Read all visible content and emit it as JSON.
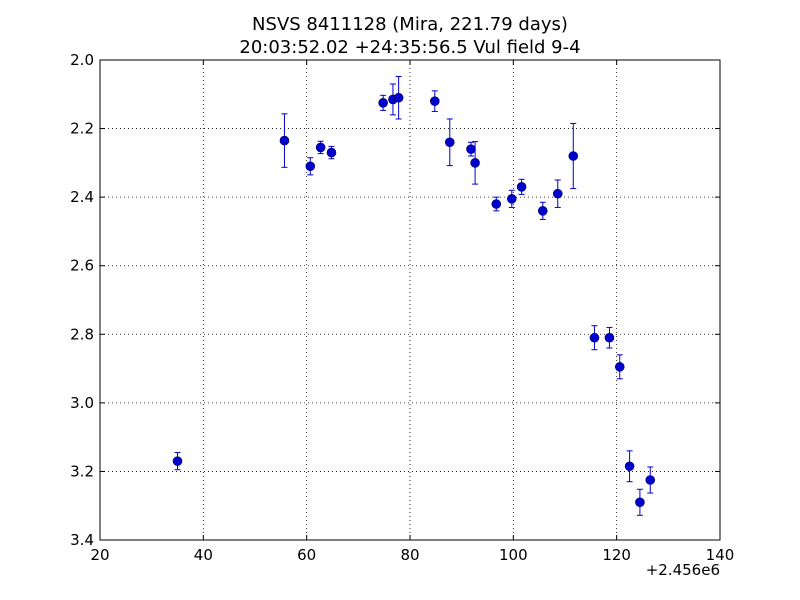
{
  "chart_data": {
    "type": "scatter",
    "title": [
      "NSVS 8411128 (Mira, 221.79 days)",
      "20:03:52.02 +24:35:56.5 Vul field 9-4"
    ],
    "xlabel": "",
    "ylabel": "",
    "x_offset_label": "+2.456e6",
    "xlim": [
      20,
      140
    ],
    "ylim": [
      2.0,
      3.4
    ],
    "y_inverted": true,
    "grid": true,
    "x_ticks": [
      20,
      40,
      60,
      80,
      100,
      120,
      140
    ],
    "x_tick_labels": [
      "20",
      "40",
      "60",
      "80",
      "100",
      "120",
      "140"
    ],
    "y_ticks": [
      2.0,
      2.2,
      2.4,
      2.6,
      2.8,
      3.0,
      3.2,
      3.4
    ],
    "y_tick_labels": [
      "2.0",
      "2.2",
      "2.4",
      "2.6",
      "2.8",
      "3.0",
      "3.2",
      "3.4"
    ],
    "marker_color": "#0000cc",
    "points": [
      {
        "x": 35.0,
        "y": 3.17,
        "err": 0.025
      },
      {
        "x": 55.7,
        "y": 2.235,
        "err": 0.078
      },
      {
        "x": 60.7,
        "y": 2.31,
        "err": 0.025
      },
      {
        "x": 62.7,
        "y": 2.255,
        "err": 0.018
      },
      {
        "x": 64.8,
        "y": 2.27,
        "err": 0.018
      },
      {
        "x": 74.8,
        "y": 2.125,
        "err": 0.022
      },
      {
        "x": 76.7,
        "y": 2.115,
        "err": 0.045
      },
      {
        "x": 77.8,
        "y": 2.11,
        "err": 0.062
      },
      {
        "x": 84.8,
        "y": 2.12,
        "err": 0.03
      },
      {
        "x": 87.7,
        "y": 2.24,
        "err": 0.068
      },
      {
        "x": 91.8,
        "y": 2.26,
        "err": 0.02
      },
      {
        "x": 92.6,
        "y": 2.3,
        "err": 0.062
      },
      {
        "x": 96.7,
        "y": 2.42,
        "err": 0.02
      },
      {
        "x": 99.7,
        "y": 2.405,
        "err": 0.025
      },
      {
        "x": 101.6,
        "y": 2.37,
        "err": 0.022
      },
      {
        "x": 105.7,
        "y": 2.44,
        "err": 0.025
      },
      {
        "x": 108.6,
        "y": 2.39,
        "err": 0.04
      },
      {
        "x": 111.6,
        "y": 2.28,
        "err": 0.095
      },
      {
        "x": 115.7,
        "y": 2.81,
        "err": 0.035
      },
      {
        "x": 118.6,
        "y": 2.81,
        "err": 0.03
      },
      {
        "x": 120.6,
        "y": 2.895,
        "err": 0.035
      },
      {
        "x": 122.5,
        "y": 3.185,
        "err": 0.045
      },
      {
        "x": 124.5,
        "y": 3.29,
        "err": 0.038
      },
      {
        "x": 126.5,
        "y": 3.225,
        "err": 0.038
      }
    ]
  }
}
